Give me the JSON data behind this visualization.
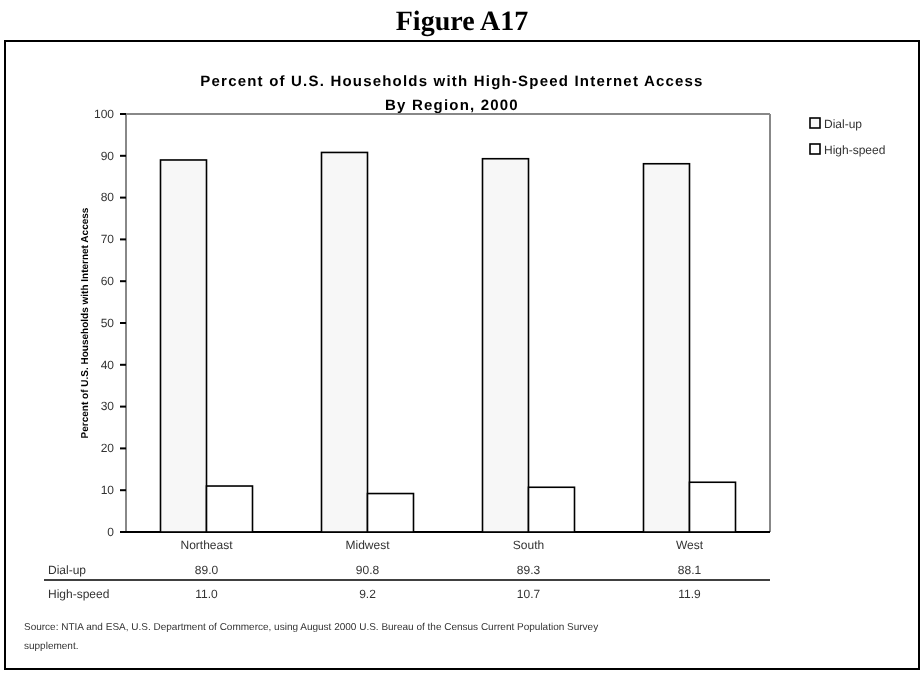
{
  "chart_data": {
    "type": "bar",
    "title": "Figure A17",
    "subtitle": "Percent of U.S. Households with High-Speed Internet Access\nBy Region, 2000",
    "ylabel": "Percent of U.S. Households with Internet Access",
    "categories": [
      "Northeast",
      "Midwest",
      "South",
      "West"
    ],
    "series": [
      {
        "name": "Dial-up",
        "color": "#f7f7f7",
        "values": [
          89.0,
          90.8,
          89.3,
          88.1
        ],
        "value_labels": [
          "89.0",
          "90.8",
          "89.3",
          "88.1"
        ]
      },
      {
        "name": "High-speed",
        "color": "#ffffff",
        "values": [
          11.0,
          9.2,
          10.7,
          11.9
        ],
        "value_labels": [
          "11.0",
          "9.2",
          "10.7",
          "11.9"
        ]
      }
    ],
    "ylim": [
      0,
      100
    ],
    "yticks": [
      0,
      10,
      20,
      30,
      40,
      50,
      60,
      70,
      80,
      90,
      100
    ],
    "grid": false,
    "legend": "top right",
    "annotations": [
      "Source: NTIA and ESA, U.S. Department of Commerce, using August 2000 U.S. Bureau of the Census Current Population Survey supplement."
    ]
  }
}
